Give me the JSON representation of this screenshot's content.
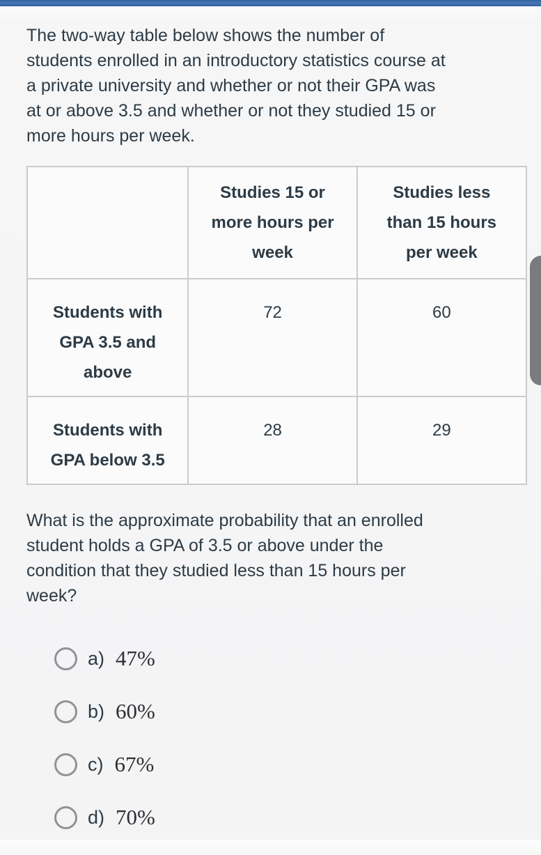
{
  "page": {
    "intro_lines": [
      "The two-way table below shows the number of",
      "students enrolled in an introductory statistics course at",
      "a private university and whether or not their GPA was",
      "at or above 3.5 and whether or not they studied 15 or",
      "more hours per week."
    ],
    "question_lines": [
      "What is the approximate probability that an enrolled",
      "student holds a GPA of 3.5 or above under the",
      "condition that they studied less than 15 hours per",
      "week?"
    ]
  },
  "table": {
    "col_headers": [
      "",
      "Studies 15 or more hours per week",
      "Studies less than 15 hours per week"
    ],
    "rows": [
      {
        "label": "Students with GPA 3.5 and above",
        "values": [
          "72",
          "60"
        ]
      },
      {
        "label": "Students with GPA below 3.5",
        "values": [
          "28",
          "29"
        ]
      }
    ]
  },
  "options": [
    {
      "letter": "a)",
      "value": "47%"
    },
    {
      "letter": "b)",
      "value": "60%"
    },
    {
      "letter": "c)",
      "value": "67%"
    },
    {
      "letter": "d)",
      "value": "70%"
    }
  ],
  "colors": {
    "accent_bar": "#4473b2",
    "body_text": "#2d3b45",
    "table_border": "#cbcbcc",
    "radio_border": "#8f9396",
    "scroll_thumb": "#7a7b7c"
  }
}
